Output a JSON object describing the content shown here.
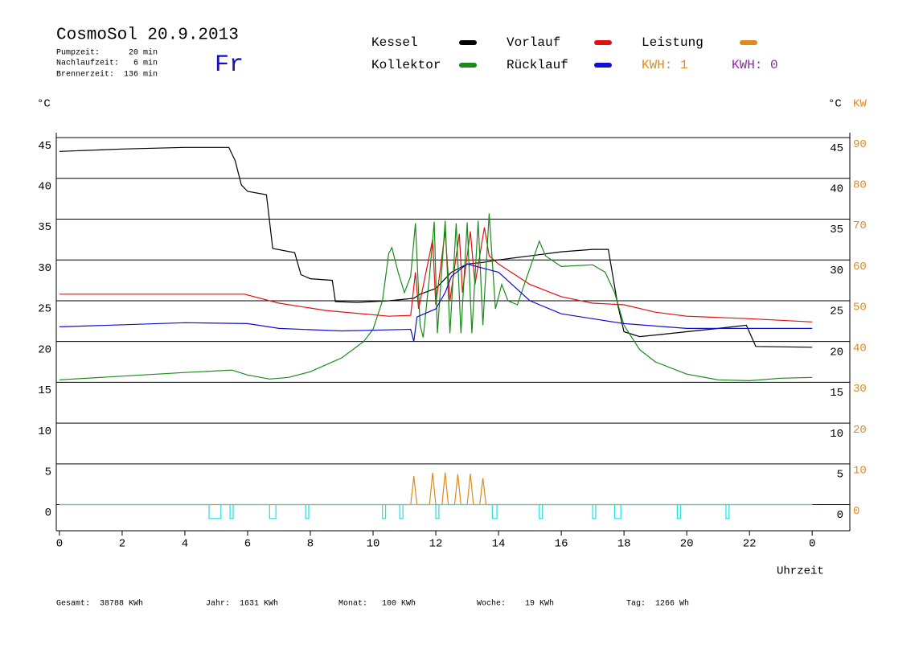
{
  "chart_data": {
    "type": "line",
    "title": "CosmoSol 20.9.2013",
    "info": [
      "Pumpzeit:      20 min",
      "Nachlaufzeit:   6 min",
      "Brennerzeit:  136 min"
    ],
    "day": "Fr",
    "ylabel": "°C",
    "y2label_c": "°C",
    "y2label": "KW",
    "xlabel": "Uhrzeit",
    "kwh_labels": [
      {
        "text": "KWH: 1",
        "color": "#e08a1e"
      },
      {
        "text": "KWH: 0",
        "color": "#8a2aa0"
      }
    ],
    "footer": [
      "Gesamt:  38788 KWh",
      "Jahr:  1631 KWh",
      "Monat:   100 KWh",
      "Woche:    19 KWh",
      "Tag:  1266 Wh"
    ],
    "xlim": [
      -0.1,
      25.2
    ],
    "ylim": [
      -3.2,
      45.6
    ],
    "y2lim": [
      -6.4,
      91.2
    ],
    "xticks": [
      0,
      2,
      4,
      6,
      8,
      10,
      12,
      14,
      16,
      18,
      20,
      22,
      {
        "value": 24,
        "label": "0"
      }
    ],
    "yticks": [
      0,
      5,
      10,
      15,
      20,
      25,
      30,
      35,
      40,
      45
    ],
    "y2ticks": [
      0,
      10,
      20,
      30,
      40,
      50,
      60,
      70,
      80,
      90
    ],
    "grid": true,
    "series": [
      {
        "name": "Kessel",
        "color": "#000000",
        "x": [
          0,
          2,
          4,
          5.4,
          5.6,
          5.8,
          6,
          6.6,
          6.8,
          7.5,
          7.7,
          8,
          8.7,
          8.8,
          9.5,
          10.5,
          11.3,
          11.5,
          12,
          12.5,
          13,
          13.5,
          14,
          14.2,
          15,
          16,
          17,
          17.5,
          17.8,
          18,
          18.5,
          19,
          20,
          21,
          21.9,
          22.2,
          24
        ],
        "values": [
          43.3,
          43.6,
          43.8,
          43.8,
          42.2,
          39.2,
          38.4,
          38.0,
          31.4,
          30.9,
          28.2,
          27.7,
          27.5,
          24.9,
          24.8,
          25.0,
          25.3,
          25.8,
          26.5,
          28.5,
          29.5,
          29.7,
          30.0,
          30.1,
          30.5,
          31.0,
          31.3,
          31.3,
          24.5,
          21.2,
          20.6,
          20.8,
          21.2,
          21.6,
          22.0,
          19.4,
          19.3
        ]
      },
      {
        "name": "Vorlauf",
        "color": "#e01010",
        "x": [
          0,
          5.9,
          7,
          8.5,
          10.5,
          11.2,
          11.35,
          11.45,
          11.9,
          12,
          12.3,
          12.45,
          12.75,
          12.85,
          13.1,
          13.25,
          13.55,
          13.7,
          14,
          15,
          16,
          17,
          18,
          19,
          20,
          22,
          24
        ],
        "values": [
          25.8,
          25.8,
          24.7,
          23.8,
          23.1,
          23.2,
          28.5,
          24.0,
          32.5,
          24.5,
          33.5,
          25.0,
          33.2,
          26.0,
          33.5,
          27.0,
          34.0,
          30.5,
          29.5,
          27.0,
          25.5,
          24.7,
          24.5,
          23.6,
          23.1,
          22.8,
          22.4
        ]
      },
      {
        "name": "Kollektor",
        "color": "#1a8a1a",
        "x": [
          0,
          4,
          5.5,
          6,
          6.7,
          7.3,
          8,
          9,
          9.7,
          10,
          10.3,
          10.5,
          10.6,
          10.8,
          11,
          11.2,
          11.35,
          11.5,
          11.6,
          11.8,
          11.95,
          12.05,
          12.3,
          12.45,
          12.65,
          12.8,
          13,
          13.15,
          13.35,
          13.5,
          13.7,
          13.9,
          14.1,
          14.3,
          14.6,
          15,
          15.3,
          15.5,
          16,
          17,
          17.4,
          17.7,
          18,
          18.5,
          19,
          20,
          21,
          22,
          23,
          24
        ],
        "values": [
          15.3,
          16.2,
          16.5,
          15.9,
          15.4,
          15.6,
          16.3,
          18.0,
          20.0,
          21.5,
          25.0,
          30.8,
          31.5,
          28.5,
          26.0,
          28.0,
          34.5,
          22.0,
          20.5,
          28.0,
          34.7,
          21.0,
          34.8,
          21.0,
          34.5,
          21.0,
          34.6,
          21.0,
          34.8,
          22.0,
          35.7,
          24.0,
          27.0,
          25.0,
          24.5,
          29.0,
          32.3,
          30.5,
          29.2,
          29.4,
          28.5,
          26.0,
          22.0,
          19.0,
          17.5,
          16.0,
          15.3,
          15.2,
          15.5,
          15.6
        ]
      },
      {
        "name": "Rücklauf",
        "color": "#1010d0",
        "x": [
          0,
          4,
          6,
          7,
          9,
          11.2,
          11.3,
          11.4,
          12,
          12.3,
          12.5,
          13,
          13.5,
          14,
          15,
          16,
          17,
          18,
          20,
          24
        ],
        "values": [
          21.8,
          22.3,
          22.2,
          21.6,
          21.3,
          21.5,
          20.0,
          23.0,
          24.0,
          26.0,
          28.0,
          29.5,
          29.0,
          28.5,
          25.0,
          23.4,
          22.8,
          22.2,
          21.6,
          21.6
        ]
      },
      {
        "name": "Leistung",
        "color": "#e08a1e",
        "axis": "y2",
        "x": [
          0,
          11.2,
          11.3,
          11.4,
          11.8,
          11.9,
          12.0,
          12.2,
          12.3,
          12.4,
          12.6,
          12.7,
          12.8,
          13.0,
          13.1,
          13.2,
          13.4,
          13.5,
          13.6,
          24
        ],
        "values": [
          0,
          0,
          7.0,
          0,
          0,
          7.8,
          0,
          0,
          7.9,
          0,
          0,
          7.5,
          0,
          0,
          7.6,
          0,
          0,
          6.5,
          0,
          0
        ]
      },
      {
        "color": "#20e0e0",
        "x": [
          0,
          4.77,
          4.77,
          5.15,
          5.15,
          5.44,
          5.44,
          5.54,
          5.54,
          6.7,
          6.7,
          6.9,
          6.9,
          7.85,
          7.85,
          7.95,
          7.95,
          10.3,
          10.3,
          10.4,
          10.4,
          10.85,
          10.85,
          10.95,
          10.95,
          12.0,
          12.0,
          12.1,
          12.1,
          13.8,
          13.8,
          13.95,
          13.95,
          15.3,
          15.3,
          15.4,
          15.4,
          17.0,
          17.0,
          17.1,
          17.1,
          17.7,
          17.7,
          17.9,
          17.9,
          19.7,
          19.7,
          19.8,
          19.8,
          21.25,
          21.25,
          21.35,
          21.35,
          24
        ],
        "values": [
          0,
          0,
          -1.7,
          -1.7,
          0,
          0,
          -1.7,
          -1.7,
          0,
          0,
          -1.7,
          -1.7,
          0,
          0,
          -1.7,
          -1.7,
          0,
          0,
          -1.7,
          -1.7,
          0,
          0,
          -1.7,
          -1.7,
          0,
          0,
          -1.7,
          -1.7,
          0,
          0,
          -1.7,
          -1.7,
          0,
          0,
          -1.7,
          -1.7,
          0,
          0,
          -1.7,
          -1.7,
          0,
          0,
          -1.7,
          -1.7,
          0,
          0,
          -1.7,
          -1.7,
          0,
          0,
          -1.7,
          -1.7,
          0,
          0
        ]
      }
    ]
  }
}
